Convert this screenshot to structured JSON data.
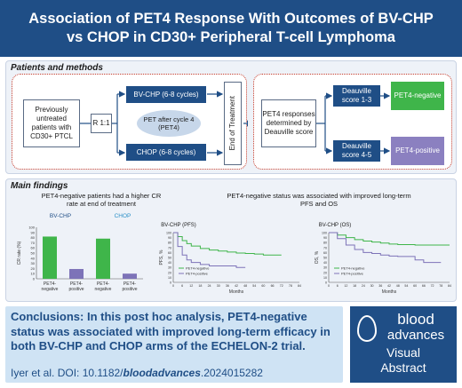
{
  "header": {
    "title_line1": "Association of PET4 Response With Outcomes of BV-CHP",
    "title_line2": "vs CHOP in CD30+ Peripheral T-cell Lymphoma"
  },
  "methods": {
    "title": "Patients and methods",
    "patients": "Previously untreated patients with CD30+ PTCL",
    "randomize": "R 1:1",
    "arm1": "BV-CHP (6-8 cycles)",
    "arm2": "CHOP (6-8 cycles)",
    "pet": "PET after cycle 4 (PET4)",
    "end": "End of Treatment",
    "pet4_resp": "PET4 responses determined by Deauville score",
    "deauville_low": "Deauville score 1-3",
    "deauville_high": "Deauville score 4-5",
    "pet4_neg": "PET4-negative",
    "pet4_pos": "PET4-positive"
  },
  "findings": {
    "title": "Main findings",
    "left_heading": "PET4-negative patients had a higher CR rate at end of treatment",
    "right_heading": "PET4-negative status was associated with improved long-term PFS and OS",
    "bvchp_label": "BV-CHP",
    "chop_label": "CHOP",
    "pfs_title": "BV-CHP (PFS)",
    "os_title": "BV-CHP (OS)",
    "legend_neg": "PET4-negative",
    "legend_pos": "PET4-positive",
    "months": "Months",
    "pfs_ylabel": "PFS, %",
    "os_ylabel": "OS, %",
    "cr_ylabel": "CR rate (%)"
  },
  "chart_data": [
    {
      "type": "bar",
      "title": "PET4-negative patients had a higher CR rate at end of treatment",
      "ylabel": "CR rate (%)",
      "ylim": [
        0,
        100
      ],
      "yticks": [
        0,
        10,
        20,
        30,
        40,
        50,
        60,
        70,
        80,
        90,
        100
      ],
      "groups": [
        "BV-CHP",
        "CHOP"
      ],
      "categories": [
        "PET4-negative",
        "PET4-positive",
        "PET4-negative",
        "PET4-positive"
      ],
      "values": [
        82,
        19,
        78,
        10
      ],
      "colors": [
        "#3fb54a",
        "#7d73b8",
        "#3fb54a",
        "#7d73b8"
      ]
    },
    {
      "type": "line",
      "title": "BV-CHP (PFS)",
      "xlabel": "Months",
      "ylabel": "PFS, %",
      "xlim": [
        0,
        84
      ],
      "ylim": [
        0,
        100
      ],
      "xticks": [
        0,
        6,
        12,
        18,
        24,
        30,
        36,
        42,
        48,
        54,
        60,
        66,
        72,
        78,
        84
      ],
      "yticks": [
        0,
        10,
        20,
        30,
        40,
        50,
        60,
        70,
        80,
        90,
        100
      ],
      "series": [
        {
          "name": "PET4-negative",
          "color": "#3fb54a",
          "x": [
            0,
            3,
            6,
            9,
            12,
            18,
            24,
            30,
            36,
            42,
            48,
            54,
            60,
            66,
            72
          ],
          "y": [
            100,
            92,
            84,
            78,
            73,
            68,
            65,
            63,
            61,
            59,
            58,
            57,
            55,
            55,
            55
          ]
        },
        {
          "name": "PET4-positive",
          "color": "#7d73b8",
          "x": [
            0,
            3,
            6,
            9,
            12,
            18,
            24,
            30,
            36,
            42,
            48
          ],
          "y": [
            100,
            72,
            55,
            45,
            40,
            36,
            33,
            33,
            33,
            30,
            30
          ]
        }
      ]
    },
    {
      "type": "line",
      "title": "BV-CHP (OS)",
      "xlabel": "Months",
      "ylabel": "OS, %",
      "xlim": [
        0,
        84
      ],
      "ylim": [
        0,
        100
      ],
      "xticks": [
        0,
        6,
        12,
        18,
        24,
        30,
        36,
        42,
        48,
        54,
        60,
        66,
        72,
        78,
        84
      ],
      "yticks": [
        0,
        10,
        20,
        30,
        40,
        50,
        60,
        70,
        80,
        90,
        100
      ],
      "series": [
        {
          "name": "PET4-negative",
          "color": "#3fb54a",
          "x": [
            0,
            6,
            12,
            18,
            24,
            30,
            36,
            42,
            48,
            54,
            60,
            66,
            72,
            78,
            84
          ],
          "y": [
            100,
            95,
            90,
            86,
            83,
            81,
            79,
            77,
            76,
            76,
            75,
            75,
            75,
            75,
            75
          ]
        },
        {
          "name": "PET4-positive",
          "color": "#7d73b8",
          "x": [
            0,
            6,
            12,
            18,
            24,
            30,
            36,
            42,
            48,
            54,
            60,
            66,
            72,
            78
          ],
          "y": [
            100,
            88,
            75,
            66,
            60,
            58,
            55,
            53,
            52,
            52,
            45,
            40,
            40,
            40
          ]
        }
      ]
    }
  ],
  "conclusions": {
    "label": "Conclusions:",
    "text": " In this post hoc analysis, PET4-negative status was associated with improved long-term efficacy in both BV-CHP and CHOP arms of the ECHELON-2 trial.",
    "cite_prefix": "Iyer et al. DOI: 10.1182/",
    "cite_bold": "bloodadvances",
    "cite_suffix": ".2024015282"
  },
  "logo": {
    "line1": "blood",
    "line2": "advances",
    "line3": "Visual",
    "line4": "Abstract"
  }
}
